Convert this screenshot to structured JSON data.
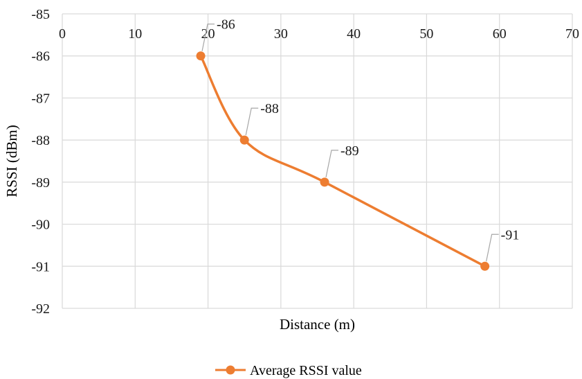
{
  "chart_data": {
    "type": "line",
    "xlabel": "Distance (m)",
    "ylabel": "RSSI (dBm)",
    "xlim": [
      0,
      70
    ],
    "ylim": [
      -92,
      -85
    ],
    "x_ticks": [
      0,
      10,
      20,
      30,
      40,
      50,
      60,
      70
    ],
    "y_ticks": [
      -85,
      -86,
      -87,
      -88,
      -89,
      -90,
      -91,
      -92
    ],
    "x_axis_position": "top",
    "grid": true,
    "smooth": true,
    "legend": "bottom-center",
    "series": [
      {
        "name": "Average RSSI value",
        "color": "#ed7d31",
        "x": [
          19,
          25,
          36,
          58
        ],
        "y": [
          -86,
          -88,
          -89,
          -91
        ],
        "labels": [
          "-86",
          "-88",
          "-89",
          "-91"
        ]
      }
    ]
  }
}
